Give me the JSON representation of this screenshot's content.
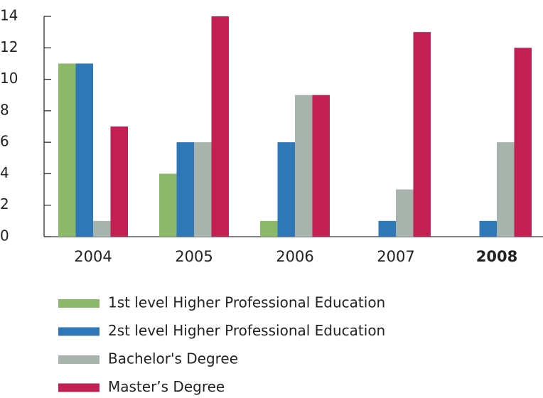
{
  "chart_data": {
    "type": "bar",
    "categories": [
      "2004",
      "2005",
      "2006",
      "2007",
      "2008"
    ],
    "highlight": "2008",
    "series": [
      {
        "name": "1st level Higher Professional Education",
        "color": "#8cb86a",
        "values": [
          11,
          4,
          1,
          0,
          0
        ]
      },
      {
        "name": "2st level Higher Professional Education",
        "color": "#2f78b8",
        "values": [
          11,
          6,
          6,
          1,
          1
        ]
      },
      {
        "name": "Bachelor's Degree",
        "color": "#a7b3ad",
        "values": [
          1,
          6,
          9,
          3,
          6
        ]
      },
      {
        "name": "Master’s Degree",
        "color": "#c21f52",
        "values": [
          7,
          14,
          9,
          13,
          12
        ]
      }
    ],
    "ylim": [
      0,
      14
    ],
    "yticks": [
      0,
      2,
      4,
      6,
      8,
      10,
      12,
      14
    ],
    "grid": false,
    "legend": "bottom"
  }
}
